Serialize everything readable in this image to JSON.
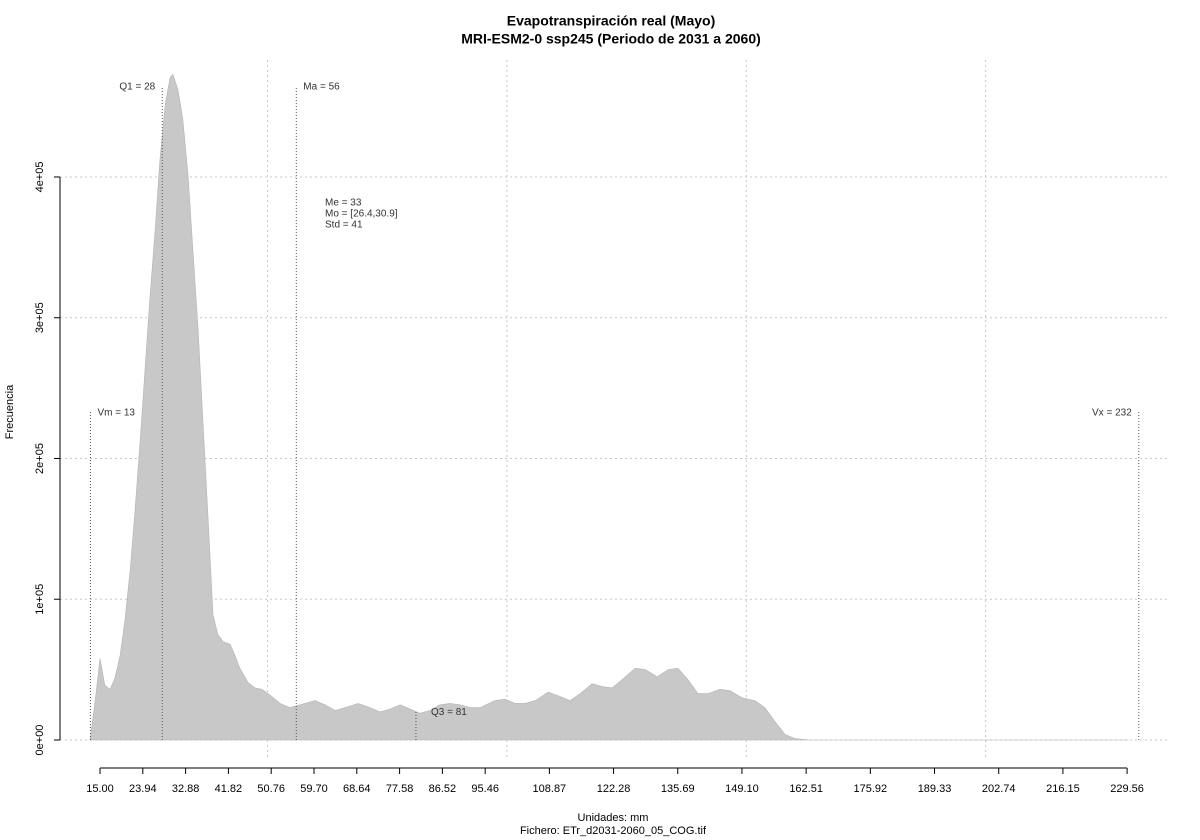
{
  "chart_data": {
    "type": "area",
    "title": "Evapotranspiración real (Mayo)",
    "subtitle": "MRI-ESM2-0 ssp245 (Periodo de 2031 a 2060)",
    "x_label": "Unidades: mm",
    "caption": "Fichero: ETr_d2031-2060_05_COG.tif",
    "y_label": "Frecuencia",
    "color": "#c8c8c8",
    "x": [
      12.9,
      14.0,
      15.0,
      16.0,
      17.1,
      18.1,
      19.2,
      20.2,
      21.3,
      22.3,
      23.4,
      24.4,
      25.4,
      26.5,
      27.5,
      28.6,
      29.6,
      30.2,
      31.3,
      32.3,
      33.4,
      34.4,
      35.5,
      36.5,
      37.6,
      38.6,
      39.6,
      40.7,
      42.2,
      43.2,
      44.2,
      45.9,
      47.4,
      48.8,
      50.5,
      52.6,
      54.7,
      56.8,
      59.9,
      62.0,
      64.1,
      66.2,
      68.9,
      71.4,
      73.5,
      75.6,
      77.7,
      79.8,
      81.8,
      83.9,
      86.0,
      88.1,
      90.2,
      92.3,
      94.4,
      97.5,
      99.6,
      101.7,
      103.8,
      105.9,
      108.6,
      111.1,
      113.2,
      115.3,
      117.8,
      119.9,
      122.0,
      124.1,
      126.8,
      128.9,
      131.4,
      133.7,
      135.7,
      137.8,
      139.9,
      142.0,
      144.5,
      146.6,
      149.1,
      151.8,
      153.9,
      156.0,
      158.1,
      160.2,
      163.3,
      229.7
    ],
    "values": [
      0,
      28000,
      58000,
      39000,
      36000,
      44000,
      60000,
      85000,
      121000,
      163000,
      213000,
      263000,
      313000,
      362000,
      412000,
      451000,
      470000,
      473000,
      462000,
      441000,
      401000,
      348000,
      291000,
      227000,
      156000,
      89000,
      75000,
      70000,
      68000,
      60000,
      51000,
      41000,
      37000,
      36000,
      32000,
      26000,
      23000,
      25000,
      28000,
      25000,
      21000,
      23000,
      26000,
      23000,
      20000,
      22000,
      25000,
      22000,
      19000,
      21000,
      25000,
      26000,
      25000,
      23000,
      23000,
      28000,
      29000,
      26000,
      26000,
      28000,
      34000,
      31000,
      28000,
      33000,
      40000,
      38000,
      37000,
      43000,
      51000,
      50000,
      45000,
      50000,
      51000,
      43000,
      33000,
      33000,
      36000,
      35000,
      30000,
      28000,
      23000,
      13000,
      4000,
      1000,
      0,
      0
    ],
    "xlim": [
      6.64,
      238.52
    ],
    "ylim": [
      -14200,
      483100
    ],
    "xticks": [
      {
        "value": 15,
        "label": "15.00"
      },
      23.94,
      32.88,
      41.82,
      50.76,
      {
        "value": 59.7,
        "label": "59.70"
      },
      68.64,
      77.58,
      86.52,
      95.46,
      108.87,
      122.28,
      135.69,
      {
        "value": 149.1,
        "label": "149.10"
      },
      162.51,
      175.92,
      189.33,
      202.74,
      216.15,
      229.56
    ],
    "yticks": [
      {
        "value": 0,
        "label": "0e+00"
      },
      {
        "value": 100000,
        "label": "1e+05"
      },
      {
        "value": 200000,
        "label": "2e+05"
      },
      {
        "value": 300000,
        "label": "3e+05"
      },
      {
        "value": 400000,
        "label": "4e+05"
      }
    ],
    "xgrid": [
      50,
      100,
      150,
      200
    ],
    "grid": true,
    "annotations": [
      {
        "label": "Vm = 13",
        "x": 13
      },
      {
        "label": "Q1 = 28",
        "x": 28
      },
      {
        "label": "Ma = 56",
        "x": 56
      },
      {
        "label": "Q3 = 81",
        "x": 81
      },
      {
        "label": "Vx = 232",
        "x": 232
      }
    ],
    "stats": [
      "Me = 33",
      "Mo = [26.4,30.9]",
      "Std = 41"
    ]
  }
}
